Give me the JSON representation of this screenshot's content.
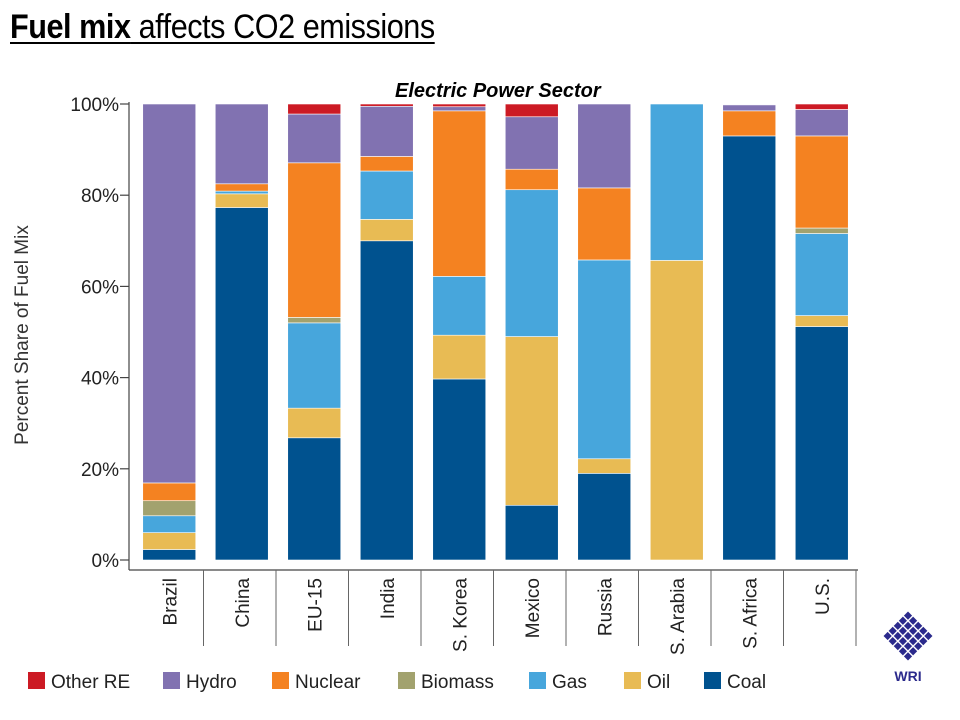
{
  "title_bold": "Fuel mix",
  "title_rest": " affects CO2 emissions",
  "logo": {
    "text": "WRI",
    "color": "#2b2a8c"
  },
  "chart_data": {
    "type": "bar",
    "stacked": true,
    "title": "Electric Power Sector",
    "ylabel": "Percent Share of Fuel Mix",
    "xlabel": "",
    "ylim": [
      0,
      100
    ],
    "yticks": [
      "0%",
      "20%",
      "40%",
      "60%",
      "80%",
      "100%"
    ],
    "grid": false,
    "legend": "bottom",
    "categories": [
      "Brazil",
      "China",
      "EU-15",
      "India",
      "S. Korea",
      "Mexico",
      "Russia",
      "S. Arabia",
      "S. Africa",
      "U.S."
    ],
    "series": [
      {
        "name": "Coal",
        "color": "#00528f",
        "values": [
          2.3,
          77.3,
          26.8,
          70.0,
          39.7,
          12.0,
          19.0,
          0,
          93.0,
          51.2
        ]
      },
      {
        "name": "Oil",
        "color": "#e8bb54",
        "values": [
          3.7,
          3.0,
          6.5,
          4.7,
          9.6,
          37.0,
          3.2,
          65.7,
          0,
          2.4
        ]
      },
      {
        "name": "Gas",
        "color": "#47a6dc",
        "values": [
          3.7,
          0.6,
          18.7,
          10.6,
          12.9,
          32.2,
          43.6,
          34.3,
          0,
          18.0
        ]
      },
      {
        "name": "Biomass",
        "color": "#a2a26e",
        "values": [
          3.3,
          0,
          1.2,
          0,
          0,
          0,
          0,
          0,
          0,
          1.2
        ]
      },
      {
        "name": "Nuclear",
        "color": "#f48221",
        "values": [
          3.9,
          1.6,
          33.9,
          3.2,
          36.3,
          4.5,
          15.8,
          0,
          5.5,
          20.2
        ]
      },
      {
        "name": "Hydro",
        "color": "#8172b1",
        "values": [
          83.1,
          17.5,
          10.7,
          11.0,
          0.9,
          11.5,
          18.4,
          0,
          1.3,
          5.8
        ]
      },
      {
        "name": "Other RE",
        "color": "#cc1a24",
        "values": [
          0,
          0,
          2.2,
          0.5,
          0.6,
          2.8,
          0,
          0,
          0,
          1.2
        ]
      }
    ],
    "legend_order": [
      "Other RE",
      "Hydro",
      "Nuclear",
      "Biomass",
      "Gas",
      "Oil",
      "Coal"
    ]
  }
}
